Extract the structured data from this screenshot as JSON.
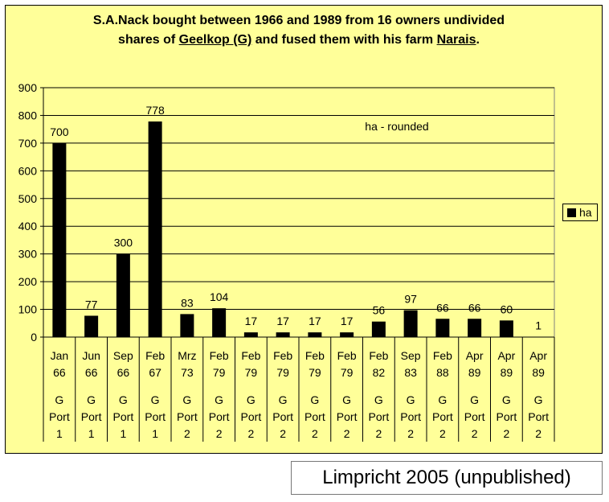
{
  "title": {
    "line1": "S.A.Nack bought between 1966 and 1989 from 16 owners undivided",
    "line2_pre": "shares of ",
    "line2_u1": "Geelkop (G)",
    "line2_mid": " and fused them with his farm ",
    "line2_u2": "Narais",
    "line2_post": "."
  },
  "annotation": "ha - rounded",
  "legend": {
    "label": "ha"
  },
  "footer": "Limpricht 2005 (unpublished)",
  "colors": {
    "background": "#ffff99",
    "bar": "#000000",
    "grid": "#000000"
  },
  "chart_data": {
    "type": "bar",
    "ylim": [
      0,
      900
    ],
    "yticks": [
      0,
      100,
      200,
      300,
      400,
      500,
      600,
      700,
      800,
      900
    ],
    "grid": true,
    "legend_position": "right",
    "categories": [
      [
        "Jan",
        "66",
        "G",
        "Port",
        "1"
      ],
      [
        "Jun",
        "66",
        "G",
        "Port",
        "1"
      ],
      [
        "Sep",
        "66",
        "G",
        "Port",
        "1"
      ],
      [
        "Feb",
        "67",
        "G",
        "Port",
        "1"
      ],
      [
        "Mrz",
        "73",
        "G",
        "Port",
        "2"
      ],
      [
        "Feb",
        "79",
        "G",
        "Port",
        "2"
      ],
      [
        "Feb",
        "79",
        "G",
        "Port",
        "2"
      ],
      [
        "Feb",
        "79",
        "G",
        "Port",
        "2"
      ],
      [
        "Feb",
        "79",
        "G",
        "Port",
        "2"
      ],
      [
        "Feb",
        "79",
        "G",
        "Port",
        "2"
      ],
      [
        "Feb",
        "82",
        "G",
        "Port",
        "2"
      ],
      [
        "Sep",
        "83",
        "G",
        "Port",
        "2"
      ],
      [
        "Feb",
        "88",
        "G",
        "Port",
        "2"
      ],
      [
        "Apr",
        "89",
        "G",
        "Port",
        "2"
      ],
      [
        "Apr",
        "89",
        "G",
        "Port",
        "2"
      ],
      [
        "Apr",
        "89",
        "G",
        "Port",
        "2"
      ]
    ],
    "series": [
      {
        "name": "ha",
        "values": [
          700,
          77,
          300,
          778,
          83,
          104,
          17,
          17,
          17,
          17,
          56,
          97,
          66,
          66,
          60,
          1
        ]
      }
    ]
  }
}
